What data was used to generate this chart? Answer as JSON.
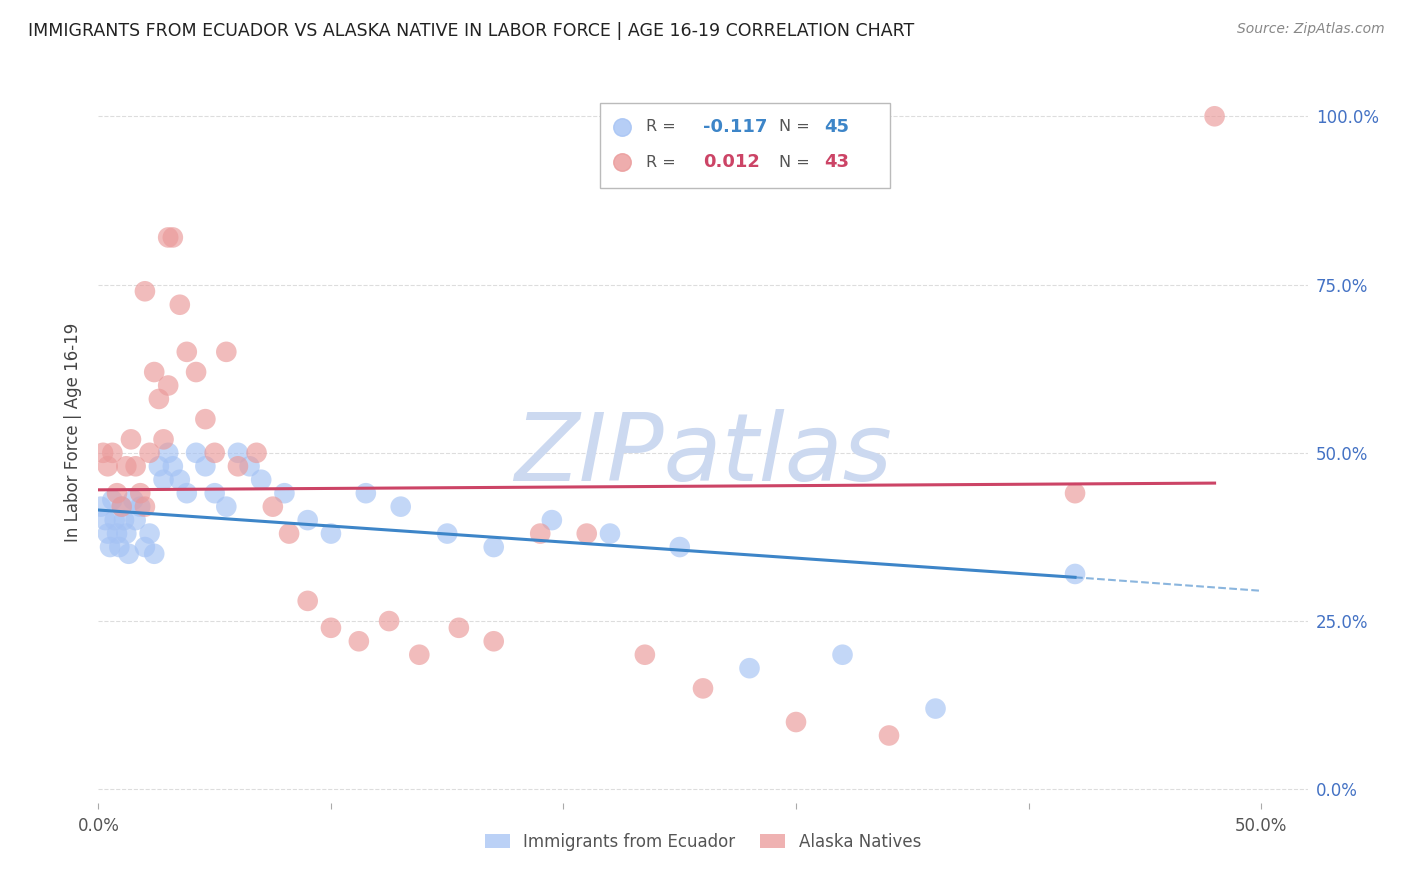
{
  "title": "IMMIGRANTS FROM ECUADOR VS ALASKA NATIVE IN LABOR FORCE | AGE 16-19 CORRELATION CHART",
  "source": "Source: ZipAtlas.com",
  "ylabel": "In Labor Force | Age 16-19",
  "xlim": [
    0.0,
    0.52
  ],
  "ylim": [
    -0.02,
    1.08
  ],
  "yticks": [
    0.0,
    0.25,
    0.5,
    0.75,
    1.0
  ],
  "ytick_labels_right": [
    "0.0%",
    "25.0%",
    "50.0%",
    "75.0%",
    "100.0%"
  ],
  "xtick_positions": [
    0.0,
    0.1,
    0.2,
    0.3,
    0.4,
    0.5
  ],
  "xtick_labels": [
    "0.0%",
    "",
    "",
    "",
    "",
    "50.0%"
  ],
  "blue_color": "#a4c2f4",
  "pink_color": "#ea9999",
  "blue_line_color": "#3d85c8",
  "pink_line_color": "#cc4466",
  "legend_label_blue": "Immigrants from Ecuador",
  "legend_label_pink": "Alaska Natives",
  "R_blue": -0.117,
  "N_blue": 45,
  "R_pink": 0.012,
  "N_pink": 43,
  "blue_points_x": [
    0.001,
    0.003,
    0.004,
    0.005,
    0.006,
    0.007,
    0.008,
    0.009,
    0.01,
    0.011,
    0.012,
    0.013,
    0.015,
    0.016,
    0.018,
    0.02,
    0.022,
    0.024,
    0.026,
    0.028,
    0.03,
    0.032,
    0.035,
    0.038,
    0.042,
    0.046,
    0.05,
    0.055,
    0.06,
    0.065,
    0.07,
    0.08,
    0.09,
    0.1,
    0.115,
    0.13,
    0.15,
    0.17,
    0.195,
    0.22,
    0.25,
    0.28,
    0.32,
    0.36,
    0.42
  ],
  "blue_points_y": [
    0.42,
    0.4,
    0.38,
    0.36,
    0.43,
    0.4,
    0.38,
    0.36,
    0.42,
    0.4,
    0.38,
    0.35,
    0.43,
    0.4,
    0.42,
    0.36,
    0.38,
    0.35,
    0.48,
    0.46,
    0.5,
    0.48,
    0.46,
    0.44,
    0.5,
    0.48,
    0.44,
    0.42,
    0.5,
    0.48,
    0.46,
    0.44,
    0.4,
    0.38,
    0.44,
    0.42,
    0.38,
    0.36,
    0.4,
    0.38,
    0.36,
    0.18,
    0.2,
    0.12,
    0.32
  ],
  "pink_points_x": [
    0.002,
    0.004,
    0.006,
    0.008,
    0.01,
    0.012,
    0.014,
    0.016,
    0.018,
    0.02,
    0.022,
    0.024,
    0.026,
    0.028,
    0.03,
    0.032,
    0.035,
    0.038,
    0.042,
    0.046,
    0.05,
    0.055,
    0.06,
    0.068,
    0.075,
    0.082,
    0.09,
    0.1,
    0.112,
    0.125,
    0.138,
    0.155,
    0.17,
    0.19,
    0.21,
    0.235,
    0.26,
    0.3,
    0.34,
    0.42,
    0.48,
    0.03,
    0.02
  ],
  "pink_points_y": [
    0.5,
    0.48,
    0.5,
    0.44,
    0.42,
    0.48,
    0.52,
    0.48,
    0.44,
    0.42,
    0.5,
    0.62,
    0.58,
    0.52,
    0.6,
    0.82,
    0.72,
    0.65,
    0.62,
    0.55,
    0.5,
    0.65,
    0.48,
    0.5,
    0.42,
    0.38,
    0.28,
    0.24,
    0.22,
    0.25,
    0.2,
    0.24,
    0.22,
    0.38,
    0.38,
    0.2,
    0.15,
    0.1,
    0.08,
    0.44,
    1.0,
    0.82,
    0.74
  ],
  "blue_line_x0": 0.0,
  "blue_line_y0": 0.415,
  "blue_line_x1": 0.42,
  "blue_line_y1": 0.315,
  "blue_line_dash_x1": 0.5,
  "blue_line_dash_y1": 0.295,
  "pink_line_x0": 0.0,
  "pink_line_y0": 0.445,
  "pink_line_x1": 0.48,
  "pink_line_y1": 0.455,
  "watermark_text": "ZIPatlas",
  "watermark_color": "#ccd9f0",
  "background_color": "#ffffff",
  "grid_color": "#dddddd"
}
